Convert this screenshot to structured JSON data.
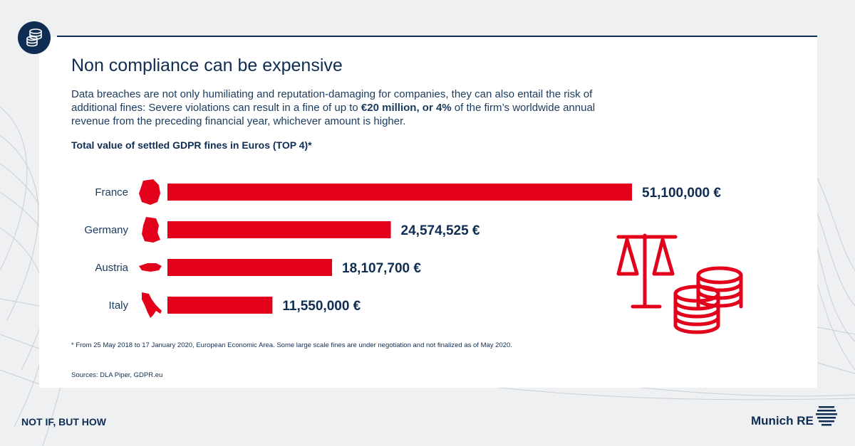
{
  "title": "Non compliance can be expensive",
  "intro": {
    "part1": "Data breaches are not only humiliating and reputation-damaging for companies, they can also entail the risk of additional fines: Severe violations can result in a fine of up to ",
    "bold": "€20 million, or 4%",
    "part2": " of the firm’s worldwide annual revenue from the preceding financial year, whichever amount is higher."
  },
  "icons": {
    "badge": "coins-stack-icon",
    "illustration": "scales-and-coins-icon",
    "logo": "munich-re-logo-icon"
  },
  "colors": {
    "navy": "#0f2d52",
    "bar": "#e3001b",
    "background": "#eef0f2"
  },
  "chart_data": {
    "type": "bar",
    "orientation": "horizontal",
    "title": "Total value of settled GDPR fines in Euros (TOP 4)*",
    "categories": [
      "France",
      "Germany",
      "Austria",
      "Italy"
    ],
    "values": [
      51100000,
      24574525,
      18107700,
      11550000
    ],
    "value_labels": [
      "51,100,000 €",
      "24,574,525 €",
      "18,107,700 €",
      "11,550,000 €"
    ],
    "xlabel": "",
    "ylabel": "",
    "grid": false,
    "legend": "none"
  },
  "footnote": "* From 25 May 2018 to 17 January 2020, European Economic Area. Some large scale fines are under negotiation and not finalized as of May 2020.",
  "sources": "Sources: DLA Piper, GDPR.eu",
  "tagline": "NOT IF, BUT HOW",
  "brand": "Munich RE"
}
